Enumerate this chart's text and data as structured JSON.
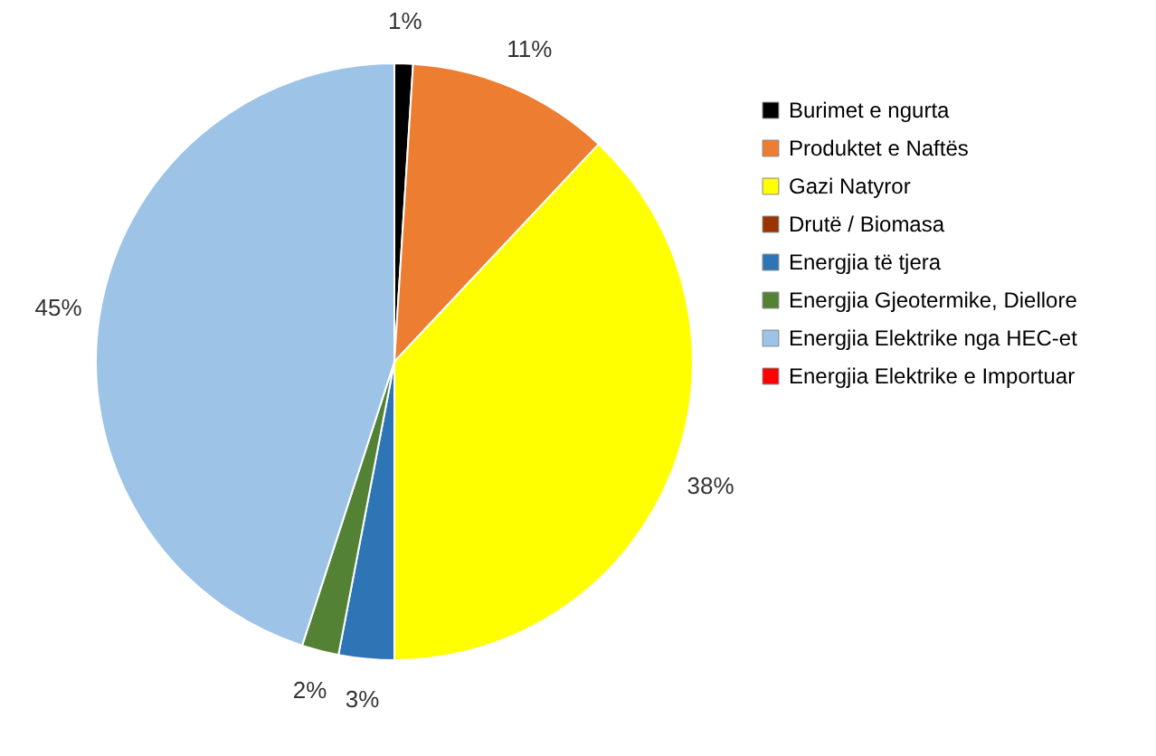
{
  "chart_data": {
    "type": "pie",
    "categories": [
      "Burimet e ngurta",
      "Produktet e Naftës",
      "Gazi Natyror",
      "Drutë / Biomasa",
      "Energjia të tjera",
      "Energjia Gjeotermike, Diellore",
      "Energjia Elektrike nga HEC-et",
      "Energjia Elektrike e Importuar"
    ],
    "values": [
      1,
      11,
      38,
      0,
      3,
      2,
      45,
      0
    ],
    "value_labels": [
      "1%",
      "11%",
      "38%",
      null,
      "3%",
      "2%",
      "45%",
      null
    ],
    "colors": [
      "#000000",
      "#ed7d31",
      "#ffff00",
      "#993300",
      "#2e75b6",
      "#548235",
      "#9dc3e6",
      "#ff0000"
    ],
    "legend": "right"
  }
}
